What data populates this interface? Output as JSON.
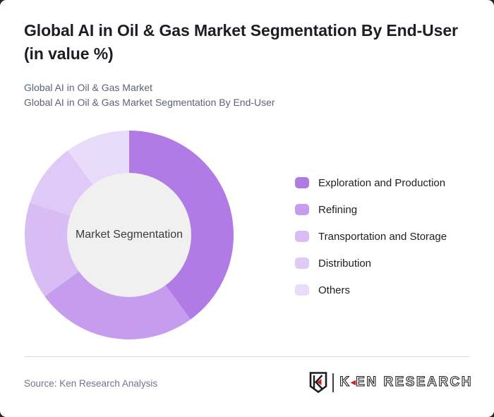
{
  "page": {
    "title": "Global AI in Oil & Gas Market Segmentation By End-User (in value %)",
    "subtitle_lines": [
      "Global AI in Oil & Gas Market",
      "Global AI in Oil & Gas Market Segmentation By End-User"
    ],
    "source": "Source: Ken Research Analysis"
  },
  "logo": {
    "wordmark_k": "K",
    "triangle_glyph": "◀",
    "wordmark_rest": "EN RESEARCH",
    "accent_color": "#c5262c"
  },
  "chart_data": {
    "type": "pie",
    "variant": "donut",
    "title": "Global AI in Oil & Gas Market Segmentation By End-User (in value %)",
    "unit": "value %",
    "center_label": "Market Segmentation",
    "legend_position": "right",
    "start_angle_deg": 0,
    "direction": "clockwise",
    "inner_circle_color": "#f0f0f1",
    "outer_radius_px": 148,
    "inner_radius_px": 88,
    "segments": [
      {
        "label": "Exploration and Production",
        "value": 40,
        "color": "#b07be5"
      },
      {
        "label": "Refining",
        "value": 25,
        "color": "#c69cef"
      },
      {
        "label": "Transportation and Storage",
        "value": 15,
        "color": "#d8bdf4"
      },
      {
        "label": "Distribution",
        "value": 10,
        "color": "#dfc9f7"
      },
      {
        "label": "Others",
        "value": 10,
        "color": "#e9dbfa"
      }
    ]
  }
}
